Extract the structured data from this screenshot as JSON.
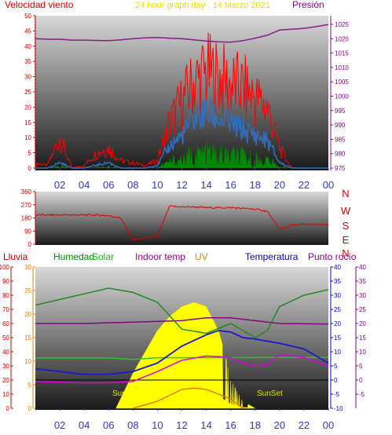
{
  "chart_data": [
    {
      "type": "line",
      "title": "24 hour graph day . 14 Marzo 2021",
      "left_label": "Velocidad viento",
      "right_label": "Presión",
      "x_ticks": [
        "02",
        "04",
        "06",
        "08",
        "10",
        "12",
        "14",
        "16",
        "18",
        "20",
        "22",
        "00"
      ],
      "x_range_hours": [
        0,
        24
      ],
      "ylim_left": [
        0,
        50
      ],
      "yticks_left": [
        0,
        5,
        10,
        15,
        20,
        25,
        30,
        35,
        40,
        45,
        50
      ],
      "ylim_right": [
        975,
        1028
      ],
      "yticks_right": [
        975,
        980,
        985,
        990,
        995,
        1000,
        1005,
        1010,
        1015,
        1020,
        1025
      ],
      "series": [
        {
          "name": "Presión",
          "color": "#8b1a8b",
          "x": [
            0,
            1,
            2,
            3,
            4,
            5,
            6,
            7,
            8,
            9,
            10,
            11,
            12,
            13,
            14,
            15,
            16,
            17,
            18,
            19,
            20,
            21,
            22,
            23,
            24
          ],
          "values": [
            1020,
            1019.8,
            1019.8,
            1019.5,
            1019.5,
            1019.4,
            1019.3,
            1019.6,
            1020,
            1020.3,
            1020.4,
            1020.2,
            1020,
            1019.6,
            1019.2,
            1018.9,
            1018.8,
            1019.3,
            1020.2,
            1021.2,
            1023,
            1023.3,
            1023.6,
            1024.2,
            1024.9
          ]
        }
      ],
      "wind_activity": {
        "gust_color": "#ff0000",
        "avg_color": "#3070c0",
        "x": [
          0,
          1,
          2,
          3,
          4,
          5,
          6,
          7,
          8,
          9,
          10,
          11,
          12,
          13,
          14,
          15,
          16,
          17,
          18,
          19,
          20,
          21,
          22,
          23,
          24
        ],
        "gust": [
          2,
          1,
          12,
          0,
          1,
          6,
          8,
          3,
          2,
          1,
          3,
          18,
          26,
          34,
          38,
          36,
          33,
          32,
          28,
          24,
          8,
          0,
          0,
          0,
          0
        ],
        "avg": [
          0,
          0,
          2,
          0,
          0,
          1,
          2,
          0,
          0,
          0,
          1,
          8,
          12,
          18,
          20,
          18,
          16,
          14,
          12,
          10,
          2,
          0,
          0,
          0,
          0
        ]
      }
    },
    {
      "type": "line",
      "title": "",
      "ylim": [
        0,
        360
      ],
      "yticks": [
        0,
        90,
        180,
        270,
        360
      ],
      "compass_labels": [
        "N",
        "W",
        "S",
        "E",
        "N"
      ],
      "series": [
        {
          "name": "",
          "color": "#dd0000",
          "x": [
            0,
            1,
            2,
            3,
            4,
            5,
            6,
            7,
            8,
            9,
            10,
            11,
            12,
            13,
            14,
            15,
            16,
            17,
            18,
            19,
            20,
            21,
            22,
            23,
            24
          ],
          "values": [
            200,
            200,
            200,
            200,
            200,
            200,
            195,
            180,
            30,
            40,
            55,
            260,
            255,
            255,
            250,
            250,
            250,
            245,
            240,
            225,
            100,
            130,
            135,
            135,
            130
          ]
        }
      ]
    },
    {
      "type": "line",
      "title": "",
      "legend": [
        "Lluvia",
        "Humedad",
        "Solar",
        "Indoor temp",
        "UV",
        "Temperatura",
        "Punto rocío"
      ],
      "legend_colors": [
        "#cc0000",
        "#008800",
        "#22aa22",
        "#880088",
        "#e08000",
        "#0000cc",
        "#880088"
      ],
      "left_axis_ticks_lluvia": [
        0,
        10,
        20,
        30,
        40,
        50,
        60,
        70,
        80,
        90,
        100
      ],
      "left_axis_ticks_uv": [
        0,
        5,
        10,
        15,
        20,
        25,
        30
      ],
      "right_axis_ticks_temp": [
        -10,
        -5,
        0,
        5,
        10,
        15,
        20,
        25,
        30,
        35,
        40
      ],
      "right_axis_ticks_dew": [
        -5,
        0,
        5,
        10,
        15,
        20,
        25,
        30,
        35,
        40
      ],
      "annotations": [
        "SunRise",
        "SunSet"
      ],
      "humidity": {
        "x": [
          0,
          2,
          4,
          6,
          8,
          10,
          12,
          14,
          16,
          18,
          19,
          20,
          22,
          24
        ],
        "values": [
          73,
          77,
          81,
          85,
          82,
          75,
          56,
          53,
          60,
          50,
          55,
          72,
          80,
          84
        ]
      },
      "solar_radiation": {
        "x": [
          6.6,
          8,
          9,
          10,
          11,
          12,
          13,
          14,
          15,
          15.5,
          16,
          17,
          18
        ],
        "values": [
          0,
          25,
          40,
          55,
          65,
          72,
          75,
          72,
          55,
          40,
          20,
          5,
          0
        ]
      },
      "indoor_temp": {
        "x": [
          0,
          4,
          8,
          12,
          14,
          16,
          20,
          24
        ],
        "values": [
          20,
          20,
          20.5,
          21,
          22,
          22,
          20,
          19.8
        ]
      },
      "uv": {
        "x": [
          8,
          10,
          12,
          13,
          14,
          16,
          17
        ],
        "values": [
          0,
          1.5,
          4,
          4.3,
          4,
          2,
          0
        ]
      },
      "temperature": {
        "x": [
          0,
          2,
          4,
          6,
          8,
          10,
          12,
          14,
          15,
          16,
          17,
          18,
          20,
          22,
          24
        ],
        "values": [
          4,
          3,
          2,
          2,
          3,
          6,
          12,
          16,
          17.5,
          17,
          15,
          14.5,
          13,
          11,
          6
        ]
      },
      "dew_point": {
        "x": [
          0,
          2,
          4,
          6,
          8,
          10,
          12,
          14,
          15,
          16,
          17,
          18,
          19,
          20,
          22,
          24
        ],
        "values": [
          -0.5,
          -0.8,
          -1,
          -1,
          -0.5,
          3,
          7,
          8.5,
          8.3,
          7.8,
          6,
          5,
          5.5,
          9,
          8,
          5
        ]
      },
      "green_flat": {
        "x": [
          0,
          6,
          8,
          10,
          22,
          24
        ],
        "values": [
          7.8,
          7.8,
          7.3,
          7.9,
          8,
          8
        ]
      }
    }
  ]
}
